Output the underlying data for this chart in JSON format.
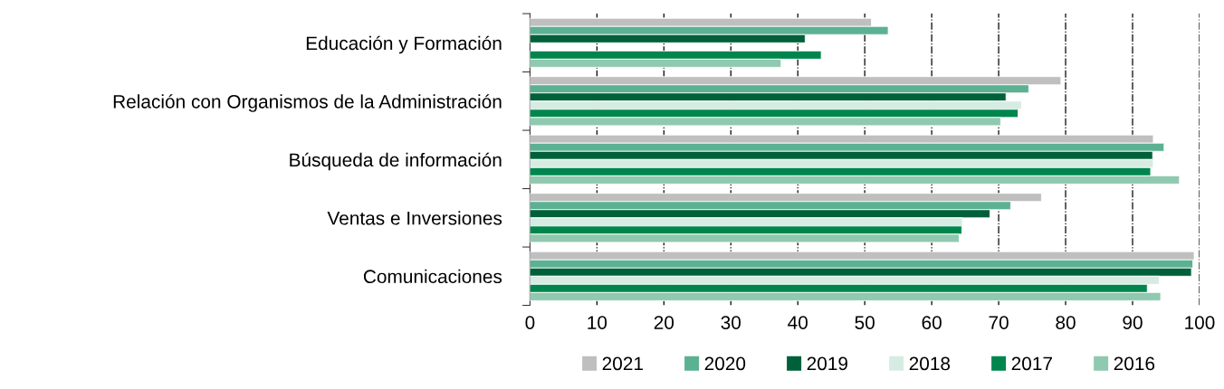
{
  "chart_data": {
    "type": "bar",
    "orientation": "horizontal",
    "categories": [
      "Educación y Formación",
      "Relación con Organismos de la Administración",
      "Búsqueda de información",
      "Ventas e Inversiones",
      "Comunicaciones"
    ],
    "series": [
      {
        "name": "2021",
        "color": "#bfbfbf",
        "values": [
          51.0,
          79.3,
          93.1,
          76.4,
          99.2
        ]
      },
      {
        "name": "2020",
        "color": "#5cb193",
        "values": [
          53.5,
          74.5,
          94.7,
          71.8,
          99.0
        ]
      },
      {
        "name": "2019",
        "color": "#00603a",
        "values": [
          41.1,
          71.1,
          93.0,
          68.7,
          98.8
        ]
      },
      {
        "name": "2018",
        "color": "#d6ece3",
        "values": [
          null,
          73.4,
          93.1,
          64.6,
          94.0
        ]
      },
      {
        "name": "2017",
        "color": "#00864d",
        "values": [
          43.5,
          72.9,
          92.7,
          64.5,
          92.2
        ]
      },
      {
        "name": "2016",
        "color": "#8fc9b0",
        "values": [
          37.5,
          70.3,
          97.0,
          64.1,
          94.2
        ]
      }
    ],
    "xlim": [
      0,
      100
    ],
    "xticks": [
      0,
      10,
      20,
      30,
      40,
      50,
      60,
      70,
      80,
      90,
      100
    ],
    "grid": "x",
    "line_style": "dashdot",
    "legend": "bottom"
  }
}
